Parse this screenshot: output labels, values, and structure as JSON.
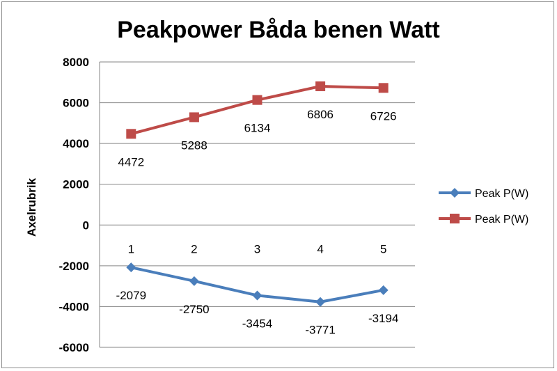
{
  "chart_data": {
    "type": "line",
    "title": "Peakpower Båda benen Watt",
    "xlabel": "",
    "ylabel": "Axelrubrik",
    "categories": [
      "1",
      "2",
      "3",
      "4",
      "5"
    ],
    "ylim": [
      -6000,
      8000
    ],
    "yticks": [
      8000,
      6000,
      4000,
      2000,
      0,
      -2000,
      -4000,
      -6000
    ],
    "grid": true,
    "legend_position": "right",
    "series": [
      {
        "name": "Peak P(W)",
        "color": "#4a7ebb",
        "marker": "diamond",
        "values": [
          -2079,
          -2750,
          -3454,
          -3771,
          -3194
        ]
      },
      {
        "name": "Peak P(W)",
        "color": "#be4b48",
        "marker": "square",
        "values": [
          4472,
          5288,
          6134,
          6806,
          6726
        ]
      }
    ]
  }
}
